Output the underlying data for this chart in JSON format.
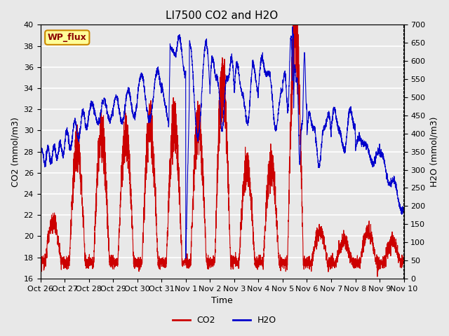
{
  "title": "LI7500 CO2 and H2O",
  "xlabel": "Time",
  "ylabel_left": "CO2 (mmol/m3)",
  "ylabel_right": "H2O (mmol/m3)",
  "ylim_co2": [
    16,
    40
  ],
  "ylim_h2o": [
    0,
    700
  ],
  "co2_color": "#cc0000",
  "h2o_color": "#0000cc",
  "background_color": "#e8e8e8",
  "grid_color": "#ffffff",
  "annotation_text": "WP_flux",
  "annotation_bg": "#ffff99",
  "annotation_border": "#cc8800",
  "tick_labels": [
    "Oct 26",
    "Oct 27",
    "Oct 28",
    "Oct 29",
    "Oct 30",
    "Oct 31",
    "Nov 1",
    "Nov 2",
    "Nov 3",
    "Nov 4",
    "Nov 5",
    "Nov 6",
    "Nov 7",
    "Nov 8",
    "Nov 9",
    "Nov 10"
  ],
  "yticks_co2": [
    16,
    18,
    20,
    22,
    24,
    26,
    28,
    30,
    32,
    34,
    36,
    38,
    40
  ],
  "yticks_h2o": [
    0,
    50,
    100,
    150,
    200,
    250,
    300,
    350,
    400,
    450,
    500,
    550,
    600,
    650,
    700
  ],
  "title_fontsize": 11,
  "axis_fontsize": 9,
  "tick_fontsize": 8
}
